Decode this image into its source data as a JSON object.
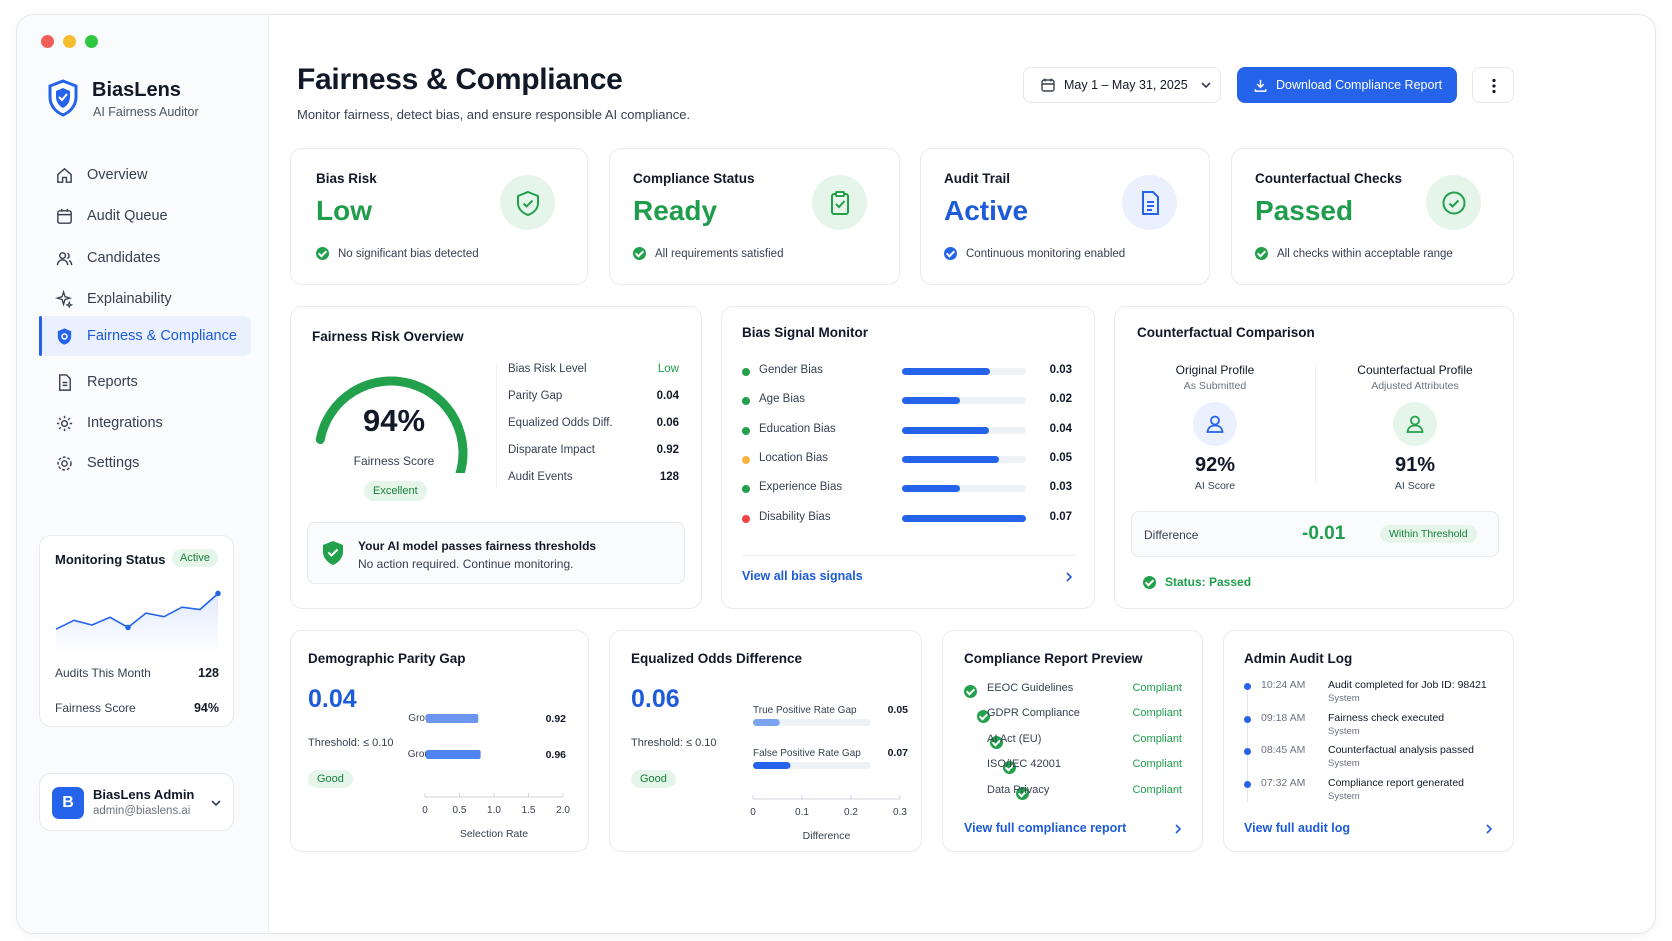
{
  "app": {
    "name": "BiasLens",
    "subtitle": "AI Fairness Auditor"
  },
  "sidebar": {
    "items": [
      {
        "label": "Overview",
        "icon": "home-icon"
      },
      {
        "label": "Audit Queue",
        "icon": "calendar-icon"
      },
      {
        "label": "Candidates",
        "icon": "users-icon"
      },
      {
        "label": "Explainability",
        "icon": "sparkle-icon"
      },
      {
        "label": "Fairness & Compliance",
        "icon": "shield-gear-icon",
        "active": true
      },
      {
        "label": "Reports",
        "icon": "document-icon"
      },
      {
        "label": "Integrations",
        "icon": "gear-icon"
      },
      {
        "label": "Settings",
        "icon": "settings-icon"
      }
    ],
    "monitoring": {
      "title": "Monitoring Status",
      "badge": "Active",
      "audits_label": "Audits This Month",
      "audits_value": "128",
      "score_label": "Fairness Score",
      "score_value": "94%",
      "sparkline": [
        0.35,
        0.5,
        0.42,
        0.55,
        0.38,
        0.62,
        0.56,
        0.72,
        0.68,
        0.95
      ]
    },
    "user": {
      "initial": "B",
      "name": "BiasLens Admin",
      "email": "admin@biaslens.ai"
    }
  },
  "header": {
    "title": "Fairness & Compliance",
    "subtitle": "Monitor fairness, detect bias, and ensure responsible AI compliance.",
    "date_range": "May 1 – May 31, 2025",
    "download_label": "Download Compliance Report"
  },
  "status_cards": [
    {
      "title": "Bias Risk",
      "value": "Low",
      "note": "No significant bias detected",
      "color": "#1f9d4c",
      "icon": "shield-check-icon"
    },
    {
      "title": "Compliance Status",
      "value": "Ready",
      "note": "All requirements satisfied",
      "color": "#1f9d4c",
      "icon": "clipboard-check-icon"
    },
    {
      "title": "Audit Trail",
      "value": "Active",
      "note": "Continuous monitoring enabled",
      "color": "#1d5bd8",
      "icon": "file-text-icon"
    },
    {
      "title": "Counterfactual Checks",
      "value": "Passed",
      "note": "All checks within acceptable range",
      "color": "#1f9d4c",
      "icon": "check-circle-icon"
    }
  ],
  "fairness_overview": {
    "title": "Fairness Risk Overview",
    "score": "94%",
    "score_fraction": 0.94,
    "score_label": "Fairness Score",
    "rating": "Excellent",
    "metrics": [
      {
        "label": "Bias Risk Level",
        "value": "Low"
      },
      {
        "label": "Parity Gap",
        "value": "0.04"
      },
      {
        "label": "Equalized Odds Diff.",
        "value": "0.06"
      },
      {
        "label": "Disparate Impact",
        "value": "0.92"
      },
      {
        "label": "Audit Events",
        "value": "128"
      }
    ],
    "banner_title": "Your AI model passes fairness thresholds",
    "banner_text": "No action required. Continue monitoring."
  },
  "bias_signals": {
    "title": "Bias Signal Monitor",
    "items": [
      {
        "label": "Gender Bias",
        "value": "0.03",
        "fraction": 0.71,
        "dot": "#22a04b"
      },
      {
        "label": "Age Bias",
        "value": "0.02",
        "fraction": 0.47,
        "dot": "#22a04b"
      },
      {
        "label": "Education Bias",
        "value": "0.04",
        "fraction": 0.7,
        "dot": "#22a04b"
      },
      {
        "label": "Location Bias",
        "value": "0.05",
        "fraction": 0.78,
        "dot": "#f5b53f"
      },
      {
        "label": "Experience Bias",
        "value": "0.03",
        "fraction": 0.47,
        "dot": "#22a04b"
      },
      {
        "label": "Disability Bias",
        "value": "0.07",
        "fraction": 1.0,
        "dot": "#ef4444"
      }
    ],
    "link": "View all bias signals"
  },
  "counterfactual": {
    "title": "Counterfactual Comparison",
    "original": {
      "title": "Original Profile",
      "sub": "As Submitted",
      "score": "92%",
      "score_label": "AI Score"
    },
    "counter": {
      "title": "Counterfactual Profile",
      "sub": "Adjusted Attributes",
      "score": "91%",
      "score_label": "AI Score"
    },
    "difference_label": "Difference",
    "difference_value": "-0.01",
    "threshold_badge": "Within Threshold",
    "status": "Status: Passed"
  },
  "parity_gap": {
    "title": "Demographic Parity Gap",
    "value": "0.04",
    "threshold": "Threshold: ≤ 0.10",
    "badge": "Good",
    "chart_data": {
      "type": "bar",
      "categories": [
        "Group A",
        "Group B"
      ],
      "values": [
        0.92,
        0.96
      ],
      "value_labels": [
        "0.92",
        "0.96"
      ],
      "xlim": [
        0,
        2.0
      ],
      "xticks": [
        "0",
        "0.5",
        "1.0",
        "1.5",
        "2.0"
      ],
      "xlabel": "Selection Rate"
    }
  },
  "equalized_odds": {
    "title": "Equalized Odds Difference",
    "value": "0.06",
    "threshold": "Threshold: ≤ 0.10",
    "badge": "Good",
    "chart_data": {
      "type": "bar",
      "categories": [
        "True Positive Rate Gap",
        "False Positive Rate Gap"
      ],
      "values": [
        0.05,
        0.07
      ],
      "value_labels": [
        "0.05",
        "0.07"
      ],
      "xlim": [
        0,
        0.3
      ],
      "xticks": [
        "0",
        "0.1",
        "0.2",
        "0.3"
      ],
      "xlabel": "Difference"
    }
  },
  "compliance_preview": {
    "title": "Compliance Report Preview",
    "items": [
      {
        "label": "EEOC Guidelines",
        "status": "Compliant"
      },
      {
        "label": "GDPR Compliance",
        "status": "Compliant"
      },
      {
        "label": "AI Act (EU)",
        "status": "Compliant"
      },
      {
        "label": "ISO/IEC 42001",
        "status": "Compliant"
      },
      {
        "label": "Data Privacy",
        "status": "Compliant"
      }
    ],
    "link": "View full compliance report"
  },
  "audit_log": {
    "title": "Admin Audit Log",
    "items": [
      {
        "time": "10:24 AM",
        "event": "Audit completed for Job ID: 98421",
        "actor": "System"
      },
      {
        "time": "09:18 AM",
        "event": "Fairness check executed",
        "actor": "System"
      },
      {
        "time": "08:45 AM",
        "event": "Counterfactual analysis passed",
        "actor": "System"
      },
      {
        "time": "07:32 AM",
        "event": "Compliance report generated",
        "actor": "System"
      }
    ],
    "link": "View full audit log"
  }
}
